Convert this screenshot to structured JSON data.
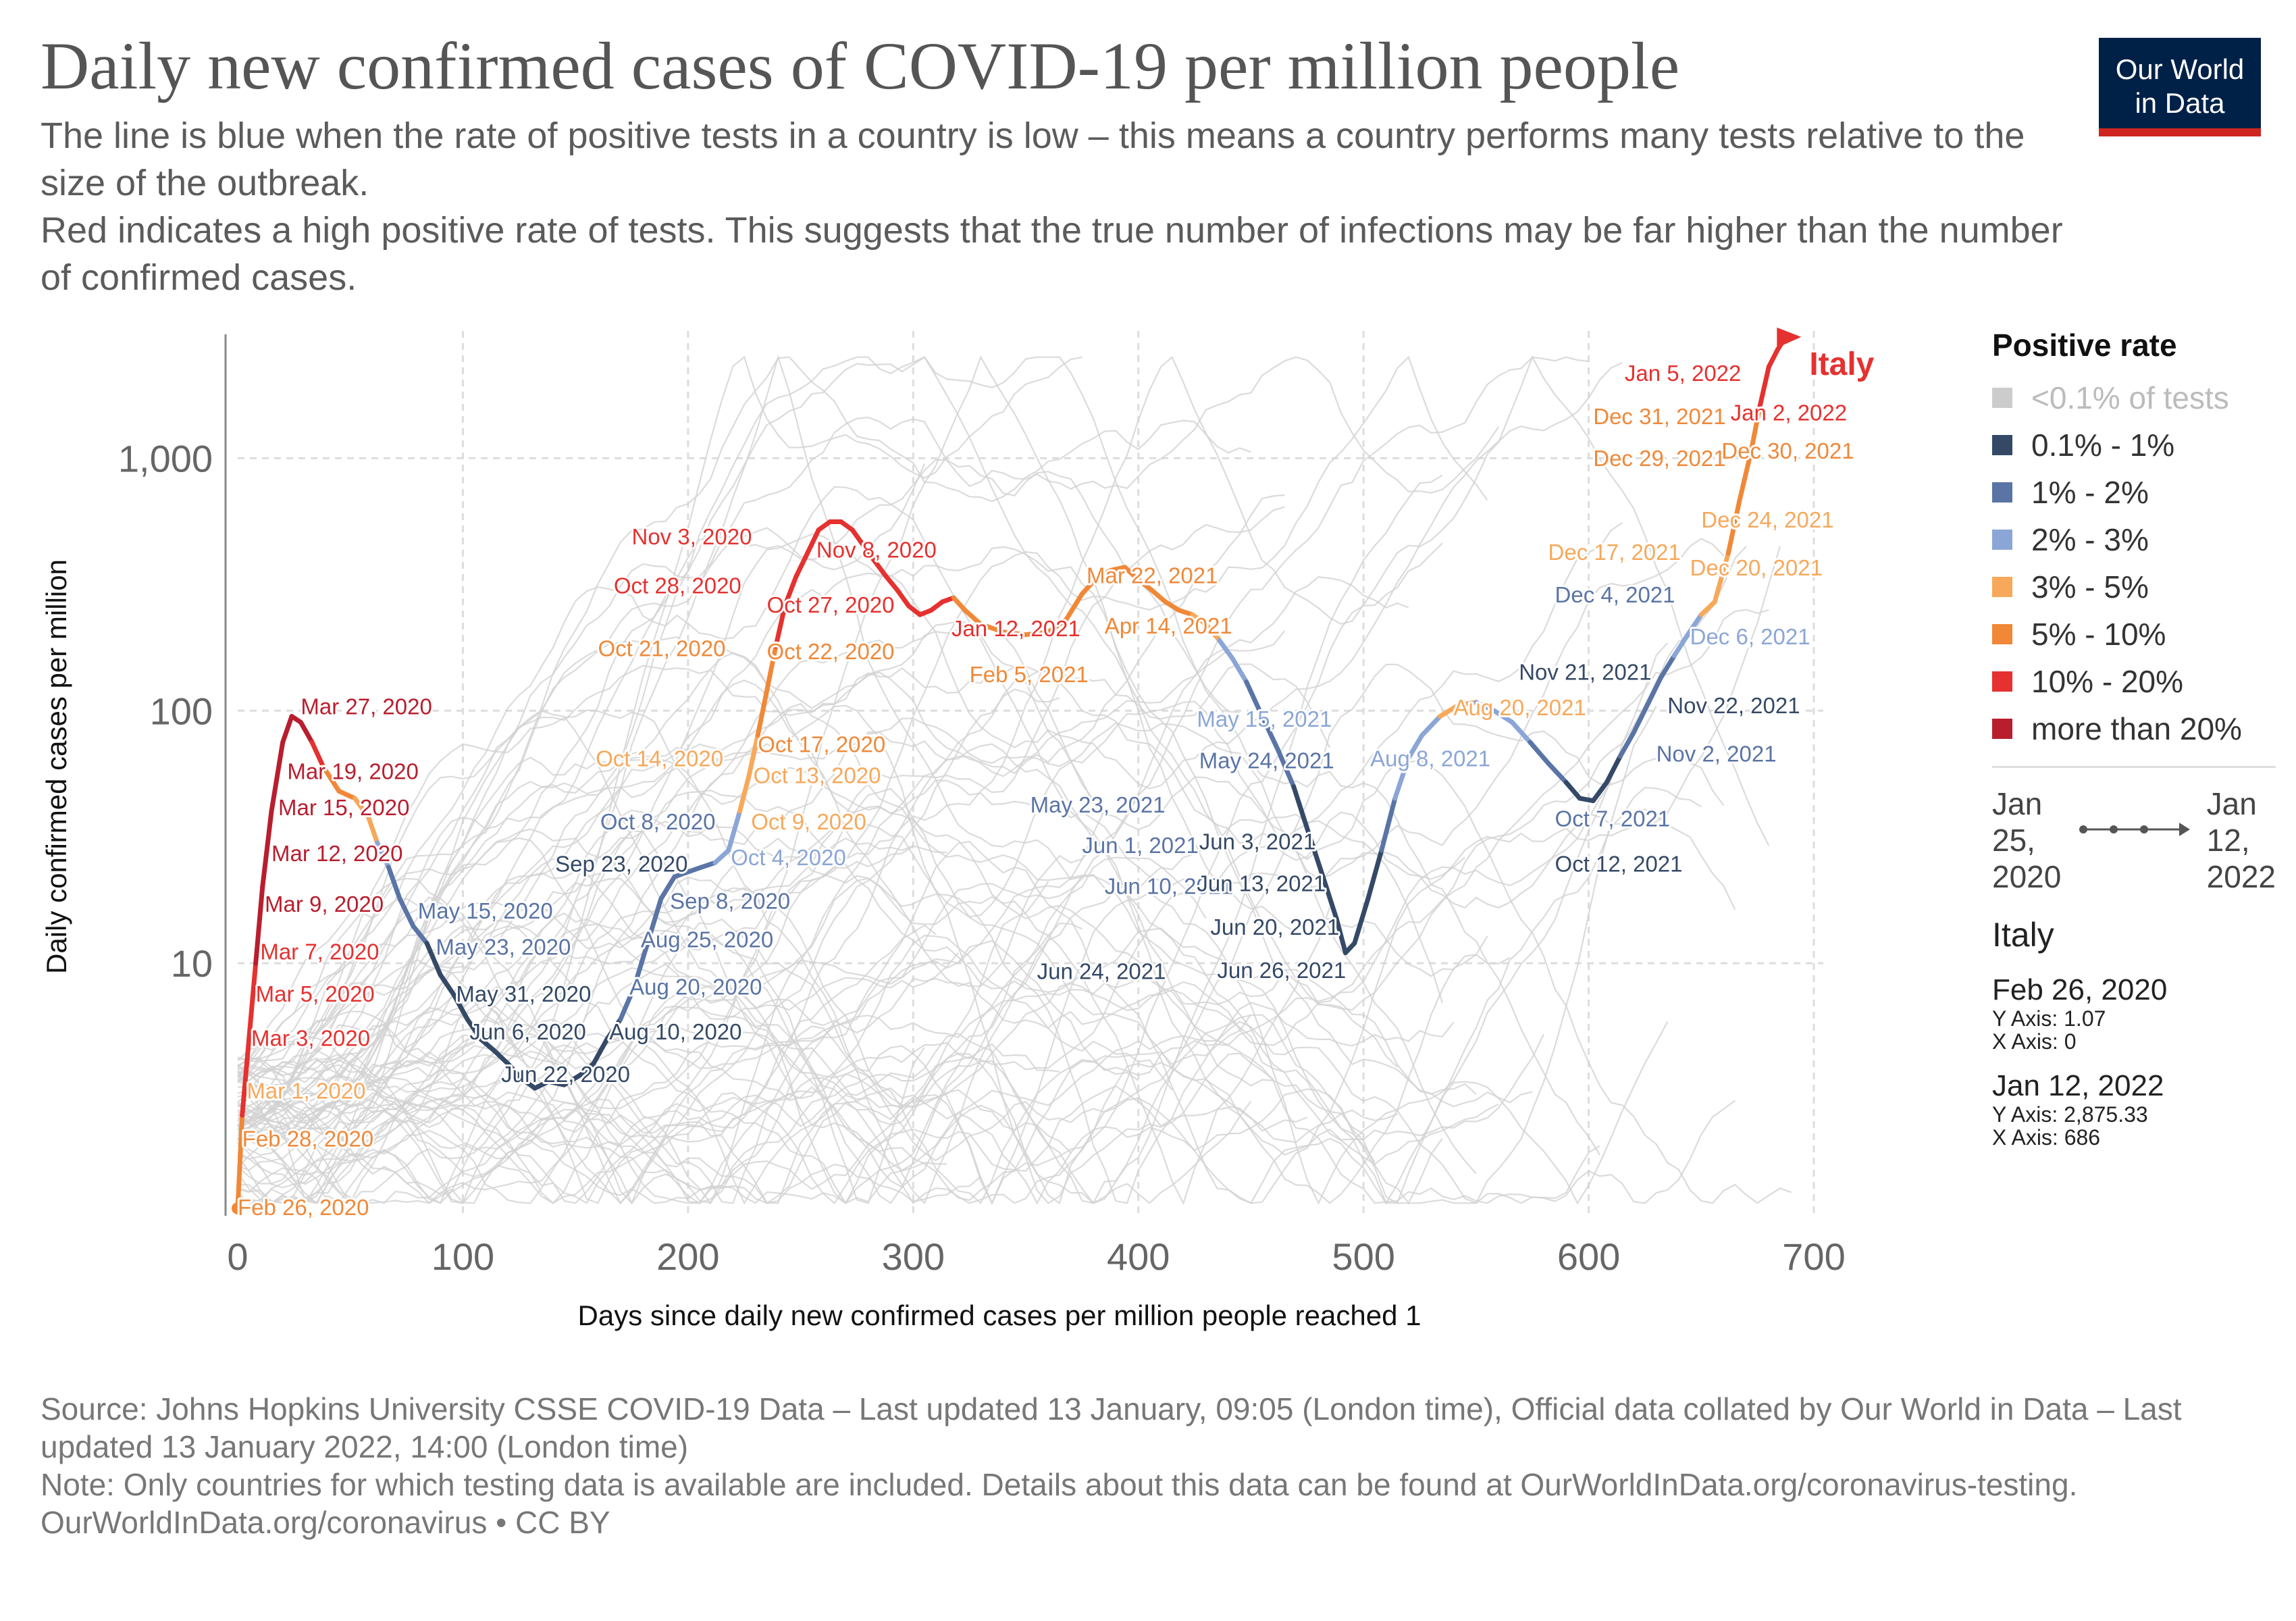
{
  "title": "Daily new confirmed cases of COVID-19 per million people",
  "subtitle": [
    "The line is blue when the rate of positive tests in a country is low – this means a country performs many tests relative to the size of the outbreak.",
    "Red indicates a high positive rate of tests. This suggests that the true number of infections may be far higher than the number of confirmed cases."
  ],
  "logo": {
    "line1": "Our World",
    "line2": "in Data"
  },
  "legend": {
    "title": "Positive rate",
    "items": [
      {
        "label": "<0.1% of tests",
        "color": "#cccccc",
        "dim": true
      },
      {
        "label": "0.1% - 1%",
        "color": "#344966"
      },
      {
        "label": "1% - 2%",
        "color": "#5a74a6"
      },
      {
        "label": "2% - 3%",
        "color": "#8ba6d6"
      },
      {
        "label": "3% - 5%",
        "color": "#f7a85a"
      },
      {
        "label": "5% - 10%",
        "color": "#f08838"
      },
      {
        "label": "10% - 20%",
        "color": "#e5312f"
      },
      {
        "label": "more than 20%",
        "color": "#b81e2e"
      }
    ]
  },
  "timeline": {
    "start_line1": "Jan",
    "start_line2": "25,",
    "start_line3": "2020",
    "end_line1": "Jan",
    "end_line2": "12,",
    "end_line3": "2022"
  },
  "info": {
    "country": "Italy",
    "start_date": "Feb 26, 2020",
    "start_y": "Y Axis: 1.07",
    "start_x": "X Axis: 0",
    "end_date": "Jan 12, 2022",
    "end_y": "Y Axis: 2,875.33",
    "end_x": "X Axis: 686"
  },
  "footer": [
    "Source: Johns Hopkins University CSSE COVID-19 Data – Last updated 13 January, 09:05 (London time), Official data collated by Our World in Data – Last updated 13 January 2022, 14:00 (London time)",
    "Note: Only countries for which testing data is available are included. Details about this data can be found at OurWorldInData.org/coronavirus-testing.",
    "OurWorldInData.org/coronavirus • CC BY"
  ],
  "colors": {
    "c0": "#cccccc",
    "c1": "#344966",
    "c2": "#5a74a6",
    "c3": "#8ba6d6",
    "c4": "#f7a85a",
    "c5": "#f08838",
    "c6": "#e5312f",
    "c7": "#b81e2e"
  },
  "chart_data": {
    "type": "line",
    "xlabel": "Days since daily new confirmed cases per million people reached 1",
    "ylabel": "Daily confirmed cases per million",
    "xlim": [
      0,
      700
    ],
    "ylim": [
      1,
      3000
    ],
    "yscale": "log",
    "x_ticks": [
      0,
      100,
      200,
      300,
      400,
      500,
      600,
      700
    ],
    "y_ticks": [
      {
        "value": 10,
        "label": "10"
      },
      {
        "value": 100,
        "label": "100"
      },
      {
        "value": 1000,
        "label": "1,000"
      }
    ],
    "highlight": {
      "name": "Italy",
      "points": [
        [
          0,
          1.07,
          5
        ],
        [
          2,
          2.5,
          5
        ],
        [
          5,
          5,
          6
        ],
        [
          8,
          10,
          6
        ],
        [
          11,
          20,
          7
        ],
        [
          15,
          40,
          7
        ],
        [
          20,
          75,
          7
        ],
        [
          24,
          95,
          7
        ],
        [
          28,
          90,
          7
        ],
        [
          33,
          75,
          7
        ],
        [
          38,
          60,
          6
        ],
        [
          45,
          48,
          5
        ],
        [
          52,
          45,
          5
        ],
        [
          58,
          38,
          4
        ],
        [
          62,
          30,
          4
        ],
        [
          67,
          24,
          3
        ],
        [
          72,
          18,
          2
        ],
        [
          78,
          14,
          2
        ],
        [
          84,
          12,
          2
        ],
        [
          90,
          9,
          1
        ],
        [
          96,
          7.5,
          1
        ],
        [
          102,
          6,
          1
        ],
        [
          108,
          5,
          1
        ],
        [
          114,
          4.5,
          1
        ],
        [
          120,
          4,
          1
        ],
        [
          126,
          3.5,
          1
        ],
        [
          132,
          3.2,
          1
        ],
        [
          138,
          3.4,
          1
        ],
        [
          145,
          3.3,
          1
        ],
        [
          152,
          3.6,
          1
        ],
        [
          158,
          4,
          1
        ],
        [
          164,
          5,
          1
        ],
        [
          170,
          6,
          1
        ],
        [
          176,
          8,
          2
        ],
        [
          182,
          12,
          2
        ],
        [
          188,
          18,
          2
        ],
        [
          194,
          22,
          2
        ],
        [
          200,
          23,
          2
        ],
        [
          206,
          24,
          2
        ],
        [
          212,
          25,
          2
        ],
        [
          218,
          28,
          3
        ],
        [
          223,
          40,
          3
        ],
        [
          227,
          55,
          4
        ],
        [
          231,
          80,
          4
        ],
        [
          235,
          120,
          5
        ],
        [
          239,
          180,
          5
        ],
        [
          243,
          260,
          6
        ],
        [
          248,
          340,
          6
        ],
        [
          253,
          420,
          6
        ],
        [
          258,
          520,
          6
        ],
        [
          263,
          560,
          6
        ],
        [
          268,
          560,
          6
        ],
        [
          273,
          520,
          6
        ],
        [
          278,
          450,
          6
        ],
        [
          283,
          390,
          6
        ],
        [
          288,
          340,
          6
        ],
        [
          293,
          300,
          6
        ],
        [
          298,
          260,
          6
        ],
        [
          303,
          240,
          6
        ],
        [
          308,
          250,
          6
        ],
        [
          313,
          270,
          6
        ],
        [
          318,
          280,
          6
        ],
        [
          323,
          250,
          5
        ],
        [
          330,
          220,
          5
        ],
        [
          340,
          205,
          5
        ],
        [
          350,
          200,
          5
        ],
        [
          360,
          205,
          5
        ],
        [
          368,
          230,
          5
        ],
        [
          375,
          290,
          5
        ],
        [
          382,
          340,
          5
        ],
        [
          388,
          360,
          5
        ],
        [
          394,
          370,
          5
        ],
        [
          400,
          330,
          5
        ],
        [
          406,
          300,
          5
        ],
        [
          412,
          270,
          5
        ],
        [
          418,
          250,
          5
        ],
        [
          424,
          240,
          5
        ],
        [
          430,
          220,
          4
        ],
        [
          436,
          190,
          4
        ],
        [
          442,
          160,
          3
        ],
        [
          448,
          130,
          3
        ],
        [
          455,
          95,
          2
        ],
        [
          462,
          70,
          2
        ],
        [
          469,
          50,
          2
        ],
        [
          476,
          32,
          1
        ],
        [
          482,
          22,
          1
        ],
        [
          488,
          15,
          1
        ],
        [
          492,
          11,
          1
        ],
        [
          496,
          12,
          1
        ],
        [
          502,
          18,
          1
        ],
        [
          508,
          28,
          1
        ],
        [
          514,
          45,
          2
        ],
        [
          520,
          65,
          3
        ],
        [
          526,
          80,
          3
        ],
        [
          534,
          95,
          3
        ],
        [
          542,
          105,
          4
        ],
        [
          550,
          108,
          4
        ],
        [
          558,
          100,
          3
        ],
        [
          566,
          90,
          3
        ],
        [
          574,
          75,
          3
        ],
        [
          582,
          62,
          2
        ],
        [
          590,
          52,
          2
        ],
        [
          596,
          45,
          1
        ],
        [
          602,
          44,
          1
        ],
        [
          608,
          52,
          1
        ],
        [
          614,
          66,
          1
        ],
        [
          620,
          82,
          2
        ],
        [
          626,
          105,
          2
        ],
        [
          632,
          135,
          2
        ],
        [
          638,
          165,
          2
        ],
        [
          644,
          200,
          3
        ],
        [
          650,
          240,
          3
        ],
        [
          656,
          270,
          4
        ],
        [
          662,
          420,
          4
        ],
        [
          667,
          680,
          5
        ],
        [
          672,
          1050,
          5
        ],
        [
          676,
          1600,
          5
        ],
        [
          680,
          2300,
          6
        ],
        [
          684,
          2700,
          6
        ],
        [
          686,
          2875,
          6
        ]
      ],
      "annotations": [
        {
          "day": 0,
          "value": 1.07,
          "text": "Feb 26, 2020",
          "c": 5
        },
        {
          "day": 2,
          "value": 2,
          "text": "Feb 28, 2020",
          "c": 5
        },
        {
          "day": 4,
          "value": 3.1,
          "text": "Mar 1, 2020",
          "c": 4
        },
        {
          "day": 6,
          "value": 5,
          "text": "Mar 3, 2020",
          "c": 6
        },
        {
          "day": 8,
          "value": 7.5,
          "text": "Mar 5, 2020",
          "c": 6
        },
        {
          "day": 10,
          "value": 11,
          "text": "Mar 7, 2020",
          "c": 6
        },
        {
          "day": 12,
          "value": 17,
          "text": "Mar 9, 2020",
          "c": 7
        },
        {
          "day": 15,
          "value": 27,
          "text": "Mar 12, 2020",
          "c": 7
        },
        {
          "day": 18,
          "value": 41,
          "text": "Mar 15, 2020",
          "c": 7
        },
        {
          "day": 22,
          "value": 57,
          "text": "Mar 19, 2020",
          "c": 7
        },
        {
          "day": 28,
          "value": 103,
          "text": "Mar 27, 2020",
          "c": 7
        },
        {
          "day": 80,
          "value": 16,
          "text": "May 15, 2020",
          "c": 2
        },
        {
          "day": 88,
          "value": 11.5,
          "text": "May 23, 2020",
          "c": 2
        },
        {
          "day": 97,
          "value": 7.5,
          "text": "May 31, 2020",
          "c": 1
        },
        {
          "day": 103,
          "value": 5.3,
          "text": "Jun 6, 2020",
          "c": 1
        },
        {
          "day": 117,
          "value": 3.6,
          "text": "Jun 22, 2020",
          "c": 1
        },
        {
          "day": 165,
          "value": 5.3,
          "text": "Aug 10, 2020",
          "c": 1
        },
        {
          "day": 174,
          "value": 8,
          "text": "Aug 20, 2020",
          "c": 2
        },
        {
          "day": 179,
          "value": 12.3,
          "text": "Aug 25, 2020",
          "c": 2
        },
        {
          "day": 192,
          "value": 17.5,
          "text": "Sep 8, 2020",
          "c": 2
        },
        {
          "day": 141,
          "value": 24.5,
          "text": "Sep 23, 2020",
          "c": 1
        },
        {
          "day": 219,
          "value": 26,
          "text": "Oct 4, 2020",
          "c": 3
        },
        {
          "day": 161,
          "value": 36,
          "text": "Oct 8, 2020",
          "c": 2
        },
        {
          "day": 228,
          "value": 36,
          "text": "Oct 9, 2020",
          "c": 4
        },
        {
          "day": 229,
          "value": 55,
          "text": "Oct 13, 2020",
          "c": 4
        },
        {
          "day": 159,
          "value": 64,
          "text": "Oct 14, 2020",
          "c": 4
        },
        {
          "day": 231,
          "value": 73,
          "text": "Oct 17, 2020",
          "c": 5
        },
        {
          "day": 160,
          "value": 175,
          "text": "Oct 21, 2020",
          "c": 5
        },
        {
          "day": 235,
          "value": 170,
          "text": "Oct 22, 2020",
          "c": 5
        },
        {
          "day": 235,
          "value": 260,
          "text": "Oct 27, 2020",
          "c": 6
        },
        {
          "day": 167,
          "value": 310,
          "text": "Oct 28, 2020",
          "c": 6
        },
        {
          "day": 175,
          "value": 485,
          "text": "Nov 3, 2020",
          "c": 6
        },
        {
          "day": 257,
          "value": 430,
          "text": "Nov 8, 2020",
          "c": 6
        },
        {
          "day": 317,
          "value": 210,
          "text": "Jan 12, 2021",
          "c": 6
        },
        {
          "day": 325,
          "value": 138,
          "text": "Feb 5, 2021",
          "c": 5
        },
        {
          "day": 377,
          "value": 340,
          "text": "Mar 22, 2021",
          "c": 5
        },
        {
          "day": 385,
          "value": 215,
          "text": "Apr 14, 2021",
          "c": 5
        },
        {
          "day": 426,
          "value": 92,
          "text": "May 15, 2021",
          "c": 3
        },
        {
          "day": 427,
          "value": 63,
          "text": "May 24, 2021",
          "c": 2
        },
        {
          "day": 352,
          "value": 42,
          "text": "May 23, 2021",
          "c": 2
        },
        {
          "day": 375,
          "value": 29,
          "text": "Jun 1, 2021",
          "c": 2
        },
        {
          "day": 427,
          "value": 30,
          "text": "Jun 3, 2021",
          "c": 1
        },
        {
          "day": 385,
          "value": 20,
          "text": "Jun 10, 2021",
          "c": 2
        },
        {
          "day": 426,
          "value": 20.5,
          "text": "Jun 13, 2021",
          "c": 1
        },
        {
          "day": 432,
          "value": 13.8,
          "text": "Jun 20, 2021",
          "c": 1
        },
        {
          "day": 355,
          "value": 9.2,
          "text": "Jun 24, 2021",
          "c": 1
        },
        {
          "day": 435,
          "value": 9.3,
          "text": "Jun 26, 2021",
          "c": 1
        },
        {
          "day": 540,
          "value": 102,
          "text": "Aug 20, 2021",
          "c": 4
        },
        {
          "day": 503,
          "value": 64,
          "text": "Aug 8, 2021",
          "c": 3
        },
        {
          "day": 585,
          "value": 37,
          "text": "Oct 7, 2021",
          "c": 2
        },
        {
          "day": 585,
          "value": 24.5,
          "text": "Oct 12, 2021",
          "c": 1
        },
        {
          "day": 630,
          "value": 67,
          "text": "Nov 2, 2021",
          "c": 2
        },
        {
          "day": 569,
          "value": 141,
          "text": "Nov 21, 2021",
          "c": 1
        },
        {
          "day": 635,
          "value": 104,
          "text": "Nov 22, 2021",
          "c": 1
        },
        {
          "day": 585,
          "value": 285,
          "text": "Dec 4, 2021",
          "c": 2
        },
        {
          "day": 645,
          "value": 195,
          "text": "Dec 6, 2021",
          "c": 3
        },
        {
          "day": 582,
          "value": 420,
          "text": "Dec 17, 2021",
          "c": 4
        },
        {
          "day": 645,
          "value": 365,
          "text": "Dec 20, 2021",
          "c": 4
        },
        {
          "day": 650,
          "value": 565,
          "text": "Dec 24, 2021",
          "c": 4
        },
        {
          "day": 602,
          "value": 990,
          "text": "Dec 29, 2021",
          "c": 5
        },
        {
          "day": 659,
          "value": 1060,
          "text": "Dec 30, 2021",
          "c": 5
        },
        {
          "day": 602,
          "value": 1450,
          "text": "Dec 31, 2021",
          "c": 5
        },
        {
          "day": 663,
          "value": 1500,
          "text": "Jan 2, 2022",
          "c": 6
        },
        {
          "day": 616,
          "value": 2150,
          "text": "Jan 5, 2022",
          "c": 6
        }
      ]
    },
    "background_series_count": 70
  }
}
